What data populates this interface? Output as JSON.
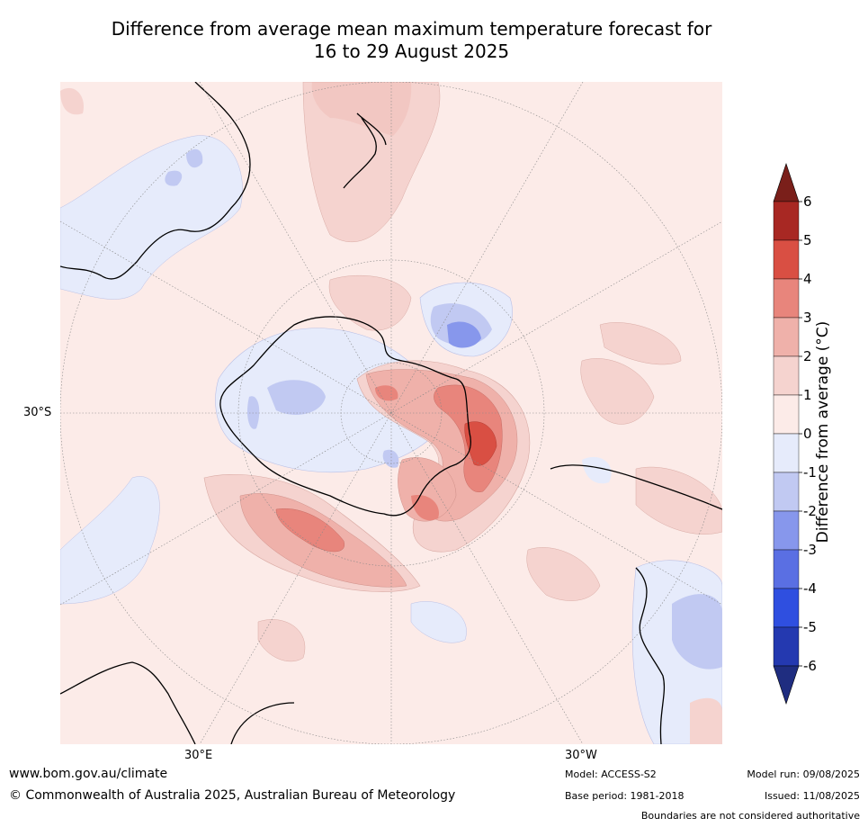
{
  "title": {
    "line1": "Difference from average mean maximum temperature forecast for",
    "line2": "16 to 29 August 2025"
  },
  "map": {
    "lat_label": "30°S",
    "lon_labels": [
      "30°E",
      "30°W"
    ]
  },
  "colorbar": {
    "label": "Difference from average (°C)",
    "ticks": [
      "6",
      "5",
      "4",
      "3",
      "2",
      "1",
      "0",
      "-1",
      "-2",
      "-3",
      "-4",
      "-5",
      "-6"
    ],
    "colors": [
      "#7a1f1a",
      "#a82823",
      "#d94f43",
      "#e8857c",
      "#efb1aa",
      "#f5d3cf",
      "#fcebe8",
      "#e6ebfb",
      "#c1c9f2",
      "#8797ec",
      "#5a6fe3",
      "#2f4fe0",
      "#2439b0",
      "#1f2d80"
    ]
  },
  "footer": {
    "website": "www.bom.gov.au/climate",
    "copyright": "© Commonwealth of Australia 2025, Australian Bureau of Meteorology",
    "model": "Model: ACCESS-S2",
    "base_period": "Base period: 1981-2018",
    "model_run": "Model run: 09/08/2025",
    "issued": "Issued: 11/08/2025",
    "disclaimer": "Boundaries are not considered authoritative"
  }
}
